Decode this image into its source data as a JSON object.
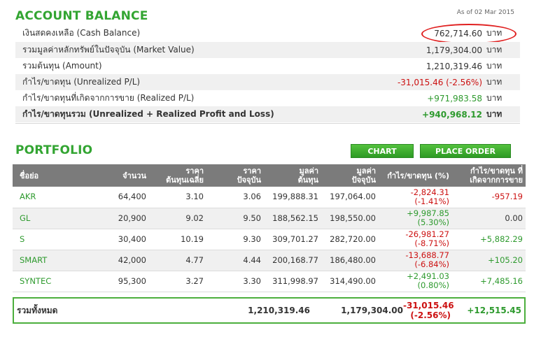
{
  "account": {
    "title": "ACCOUNT BALANCE",
    "as_of": "As of 02 Mar 2015",
    "unit": "บาท",
    "rows": [
      {
        "label": "เงินสดคงเหลือ (Cash Balance)",
        "value": "762,714.60"
      },
      {
        "label": "รวมมูลค่าหลักทรัพย์ในปัจจุบัน (Market Value)",
        "value": "1,179,304.00"
      },
      {
        "label": "รวมต้นทุน (Amount)",
        "value": "1,210,319.46"
      },
      {
        "label": "กำไร/ขาดทุน (Unrealized P/L)",
        "value": "-31,015.46 (-2.56%)"
      },
      {
        "label": "กำไร/ขาดทุนที่เกิดจากการขาย (Realized P/L)",
        "value": "+971,983.58"
      },
      {
        "label": "กำไร/ขาดทุนรวม (Unrealized + Realized Profit and Loss)",
        "value": "+940,968.12"
      }
    ],
    "highlight_color": "#e02020"
  },
  "portfolio": {
    "title": "PORTFOLIO",
    "chart_button": "CHART",
    "order_button": "PLACE ORDER",
    "headers": {
      "symbol": "ชื่อย่อ",
      "volume": "จำนวน",
      "avg_cost_1": "ราคา",
      "avg_cost_2": "ต้นทุนเฉลี่ย",
      "price_1": "ราคา",
      "price_2": "ปัจจุบัน",
      "amount_1": "มูลค่า",
      "amount_2": "ต้นทุน",
      "market_1": "มูลค่า",
      "market_2": "ปัจจุบัน",
      "upl": "กำไร/ขาดทุน (%)",
      "rpl_1": "กำไร/ขาดทุน ที่",
      "rpl_2": "เกิดจากการขาย"
    },
    "rows": [
      {
        "symbol": "AKR",
        "volume": "64,400",
        "avg_cost": "3.10",
        "price": "3.06",
        "amount": "199,888.31",
        "market": "197,064.00",
        "upl": "-2,824.31",
        "upl_pct": "(-1.41%)",
        "rpl": "-957.19"
      },
      {
        "symbol": "GL",
        "volume": "20,900",
        "avg_cost": "9.02",
        "price": "9.50",
        "amount": "188,562.15",
        "market": "198,550.00",
        "upl": "+9,987.85",
        "upl_pct": "(5.30%)",
        "rpl": "0.00"
      },
      {
        "symbol": "S",
        "volume": "30,400",
        "avg_cost": "10.19",
        "price": "9.30",
        "amount": "309,701.27",
        "market": "282,720.00",
        "upl": "-26,981.27",
        "upl_pct": "(-8.71%)",
        "rpl": "+5,882.29"
      },
      {
        "symbol": "SMART",
        "volume": "42,000",
        "avg_cost": "4.77",
        "price": "4.44",
        "amount": "200,168.77",
        "market": "186,480.00",
        "upl": "-13,688.77",
        "upl_pct": "(-6.84%)",
        "rpl": "+105.20"
      },
      {
        "symbol": "SYNTEC",
        "volume": "95,300",
        "avg_cost": "3.27",
        "price": "3.30",
        "amount": "311,998.97",
        "market": "314,490.00",
        "upl": "+2,491.03",
        "upl_pct": "(0.80%)",
        "rpl": "+7,485.16"
      }
    ],
    "total": {
      "label": "รวมทั้งหมด",
      "amount": "1,210,319.46",
      "market": "1,179,304.00",
      "upl": "-31,015.46",
      "upl_pct": "(-2.56%)",
      "rpl": "+12,515.45"
    }
  },
  "colors": {
    "accent": "#33a532",
    "negative": "#cc1111",
    "positive": "#2e9a2e",
    "header_bg": "#7b7b7b"
  }
}
